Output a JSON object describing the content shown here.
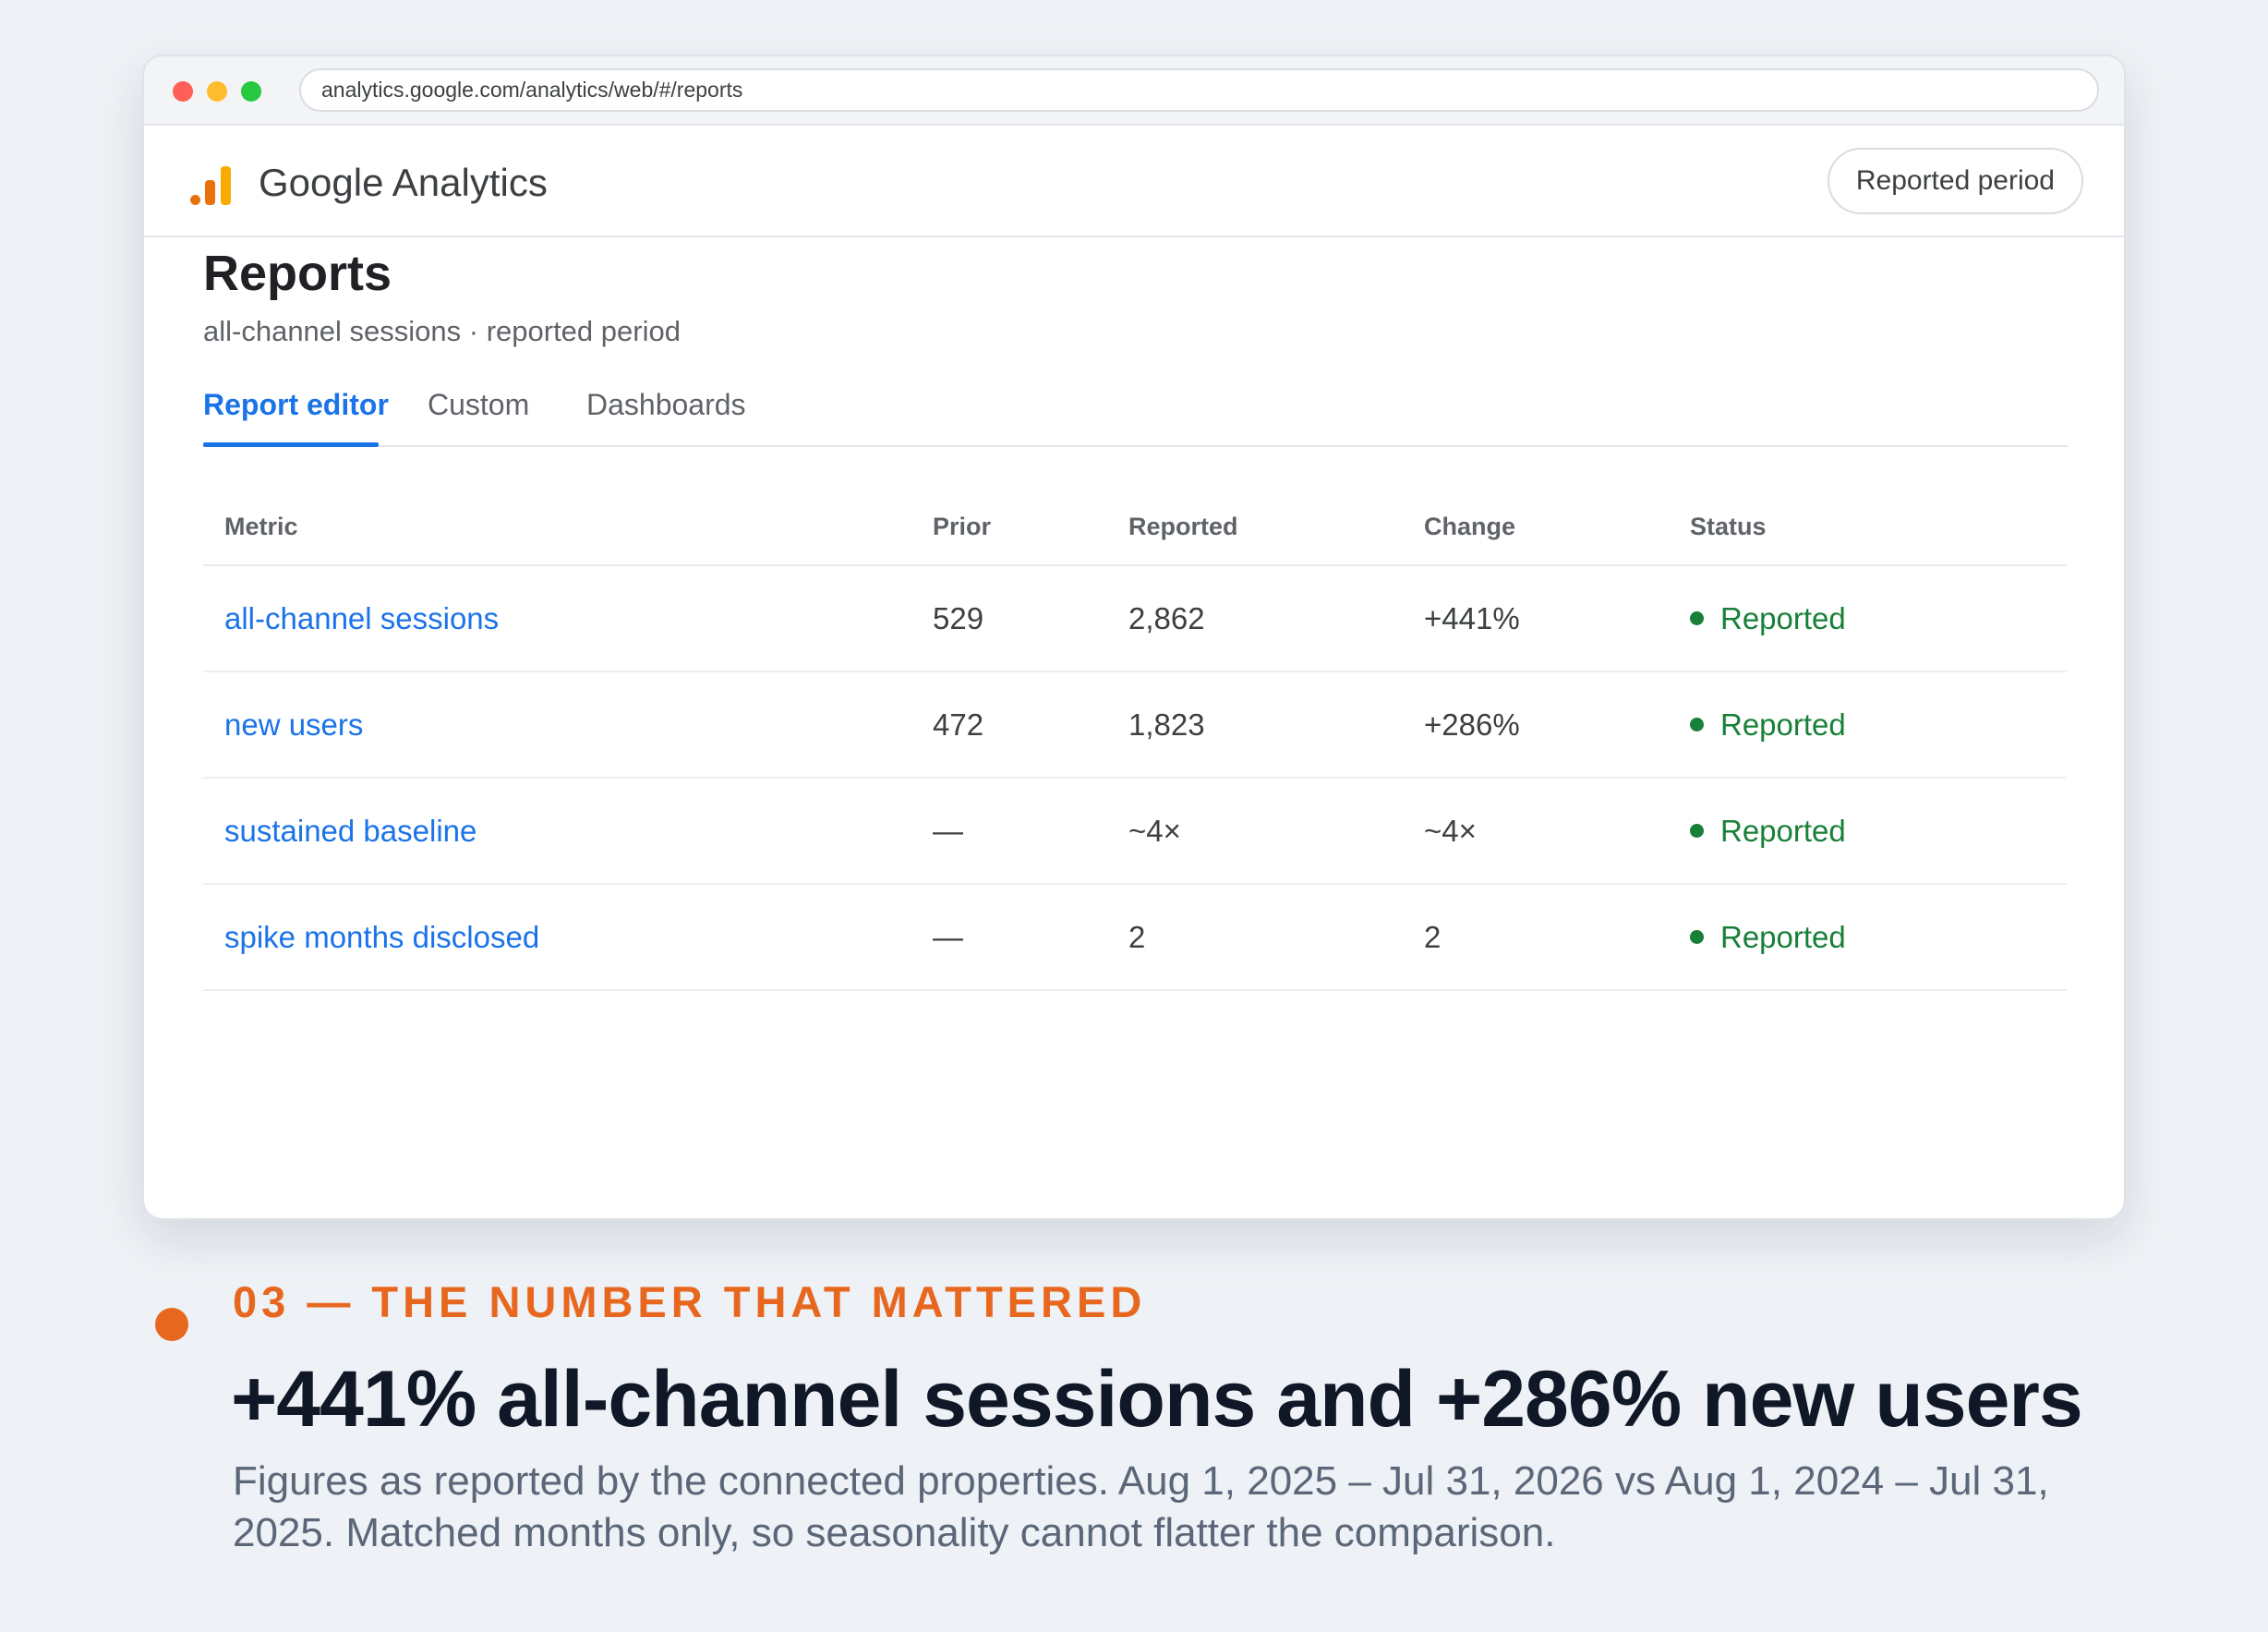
{
  "browser": {
    "url": "analytics.google.com/analytics/web/#/reports"
  },
  "app": {
    "brand": "Google Analytics",
    "period_button": "Reported period",
    "brand_colors": [
      "#e8710a",
      "#f9ab00"
    ]
  },
  "page": {
    "title": "Reports",
    "subtitle": "all-channel sessions · reported period",
    "tabs": [
      {
        "label": "Report editor",
        "active": true
      },
      {
        "label": "Custom",
        "active": false
      },
      {
        "label": "Dashboards",
        "active": false
      }
    ]
  },
  "table": {
    "headers": [
      "Metric",
      "Prior",
      "Reported",
      "Change",
      "Status"
    ],
    "rows": [
      {
        "metric": "all-channel sessions",
        "prior": "529",
        "reported": "2,862",
        "change": "+441%",
        "status": "Reported"
      },
      {
        "metric": "new users",
        "prior": "472",
        "reported": "1,823",
        "change": "+286%",
        "status": "Reported"
      },
      {
        "metric": "sustained baseline",
        "prior": "—",
        "reported": "~4×",
        "change": "~4×",
        "status": "Reported"
      },
      {
        "metric": "spike months disclosed",
        "prior": "—",
        "reported": "2",
        "change": "2",
        "status": "Reported"
      }
    ]
  },
  "caption": {
    "kicker": "03 — THE NUMBER THAT MATTERED",
    "headline": "+441% all-channel sessions and +286% new users",
    "description": "Figures as reported by the connected properties. Aug 1, 2025 – Jul 31, 2026 vs Aug 1, 2024 – Jul 31, 2025. Matched months only, so seasonality cannot flatter the comparison."
  },
  "colors": {
    "accent": "#1a73e8",
    "status_ok": "#188038",
    "caption_accent": "#e8671f"
  }
}
